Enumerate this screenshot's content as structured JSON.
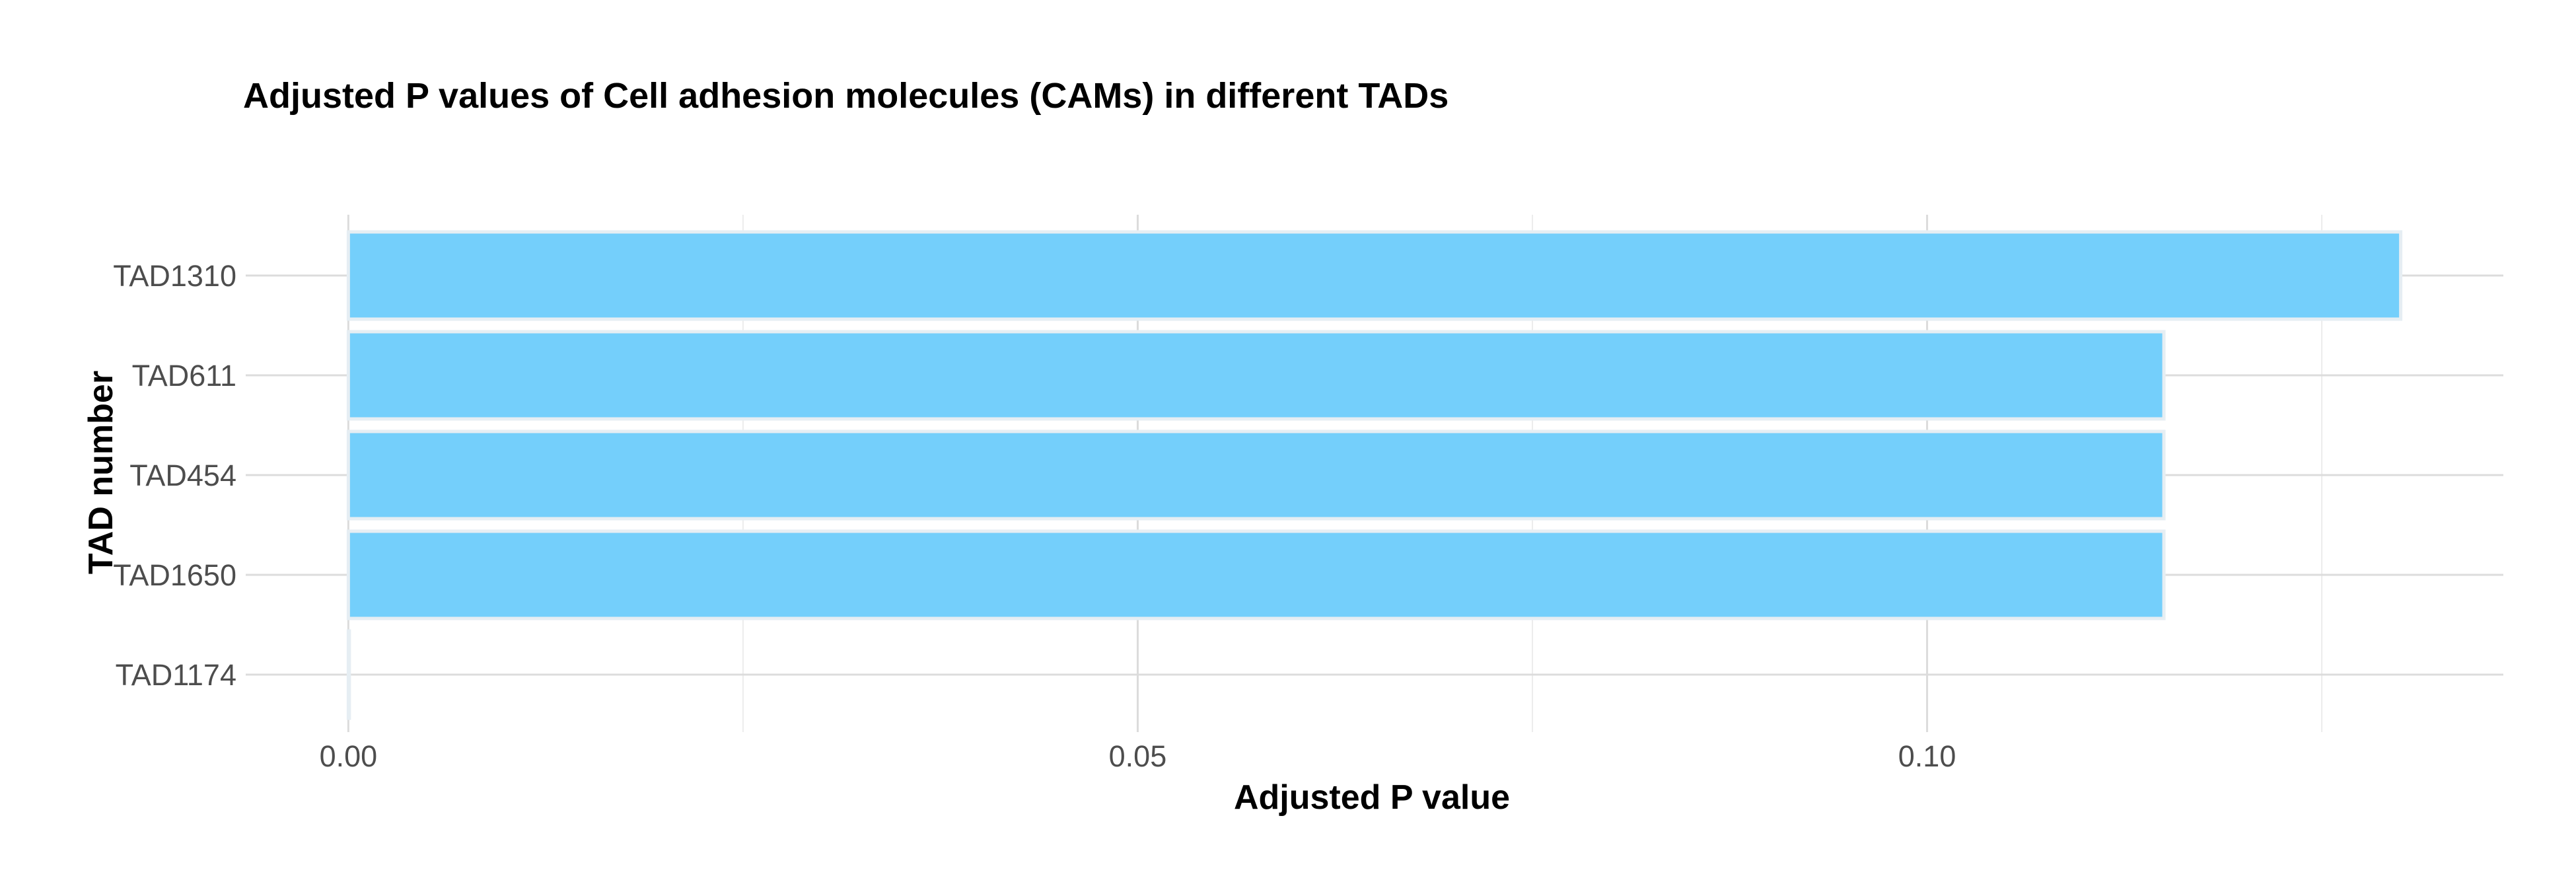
{
  "chart_data": {
    "type": "bar",
    "orientation": "horizontal",
    "title": "Adjusted P values of Cell adhesion molecules (CAMs) in different TADs",
    "xlabel": "Adjusted P value",
    "ylabel": "TAD number",
    "categories": [
      "TAD1310",
      "TAD611",
      "TAD454",
      "TAD1650",
      "TAD1174"
    ],
    "values": [
      0.13,
      0.115,
      0.115,
      0.115,
      0.0
    ],
    "xlim": [
      -0.0065,
      0.1365
    ],
    "xticks": [
      0.0,
      0.05,
      0.1
    ],
    "xtick_labels": [
      "0.00",
      "0.05",
      "0.10"
    ],
    "grid": true,
    "legend": "none",
    "colors": {
      "bar_fill": "#74cffb",
      "bar_stroke": "#e6eef3",
      "grid_major": "#dcdcdc",
      "grid_minor": "#ececec",
      "tick_text": "#4d4d4d",
      "title_text": "#000000"
    }
  }
}
